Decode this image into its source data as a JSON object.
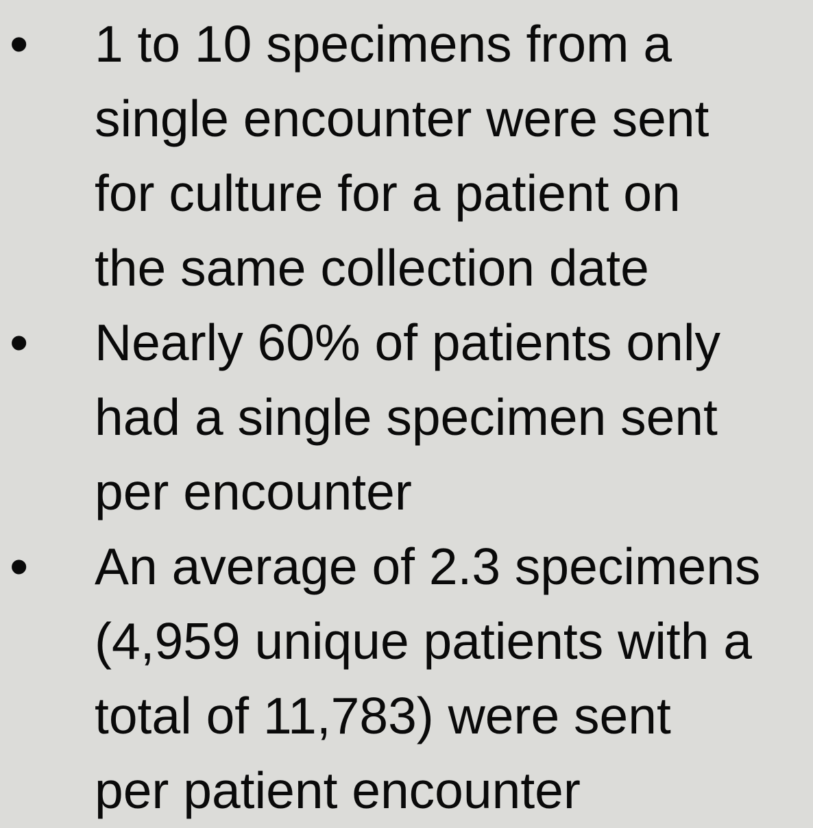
{
  "bullets": [
    {
      "marker": "•",
      "lines": [
        "1 to 10 specimens from a",
        "single encounter were sent",
        "for culture for a patient on",
        "the same collection date"
      ]
    },
    {
      "marker": "•",
      "lines": [
        "Nearly 60% of patients only",
        "had a single specimen sent",
        "per encounter"
      ]
    },
    {
      "marker": "•",
      "lines": [
        "An average of 2.3 specimens",
        "(4,959 unique patients with a",
        "total of 11,783) were sent",
        "per patient encounter"
      ]
    }
  ]
}
